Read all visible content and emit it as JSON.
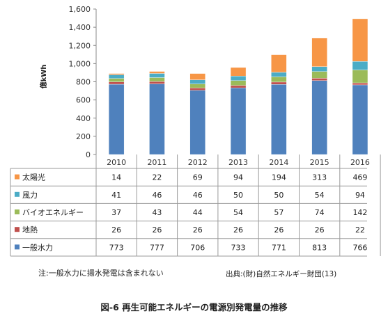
{
  "chart_data": {
    "type": "bar",
    "stacked": true,
    "ylabel": "億kWh",
    "ylim": [
      0,
      1600
    ],
    "yticks": [
      0,
      200,
      400,
      600,
      800,
      1000,
      1200,
      1400,
      1600
    ],
    "ytick_labels": [
      "0",
      "200",
      "400",
      "600",
      "800",
      "1,000",
      "1,200",
      "1,400",
      "1,600"
    ],
    "categories": [
      "2010",
      "2011",
      "2012",
      "2013",
      "2014",
      "2015",
      "2016"
    ],
    "series": [
      {
        "name": "一般水力",
        "color": "#4f81bd",
        "values": [
          773,
          777,
          706,
          733,
          771,
          813,
          766
        ]
      },
      {
        "name": "地熱",
        "color": "#c0504d",
        "values": [
          26,
          26,
          26,
          26,
          26,
          26,
          22
        ]
      },
      {
        "name": "バイオエネルギー",
        "color": "#9bbb59",
        "values": [
          37,
          43,
          44,
          54,
          57,
          74,
          142
        ]
      },
      {
        "name": "風力",
        "color": "#4bacc6",
        "values": [
          41,
          46,
          46,
          50,
          50,
          54,
          94
        ]
      },
      {
        "name": "太陽光",
        "color": "#f79646",
        "values": [
          14,
          22,
          69,
          94,
          194,
          313,
          469
        ]
      }
    ],
    "table_row_order": [
      "太陽光",
      "風力",
      "バイオエネルギー",
      "地熱",
      "一般水力"
    ],
    "grid": false
  },
  "notes": {
    "left": "注:一般水力に揚水発電は含まれない",
    "right": "出典:(財)自然エネルギー財団(13)"
  },
  "caption": "図-6 再生可能エネルギーの電源別発電量の推移"
}
